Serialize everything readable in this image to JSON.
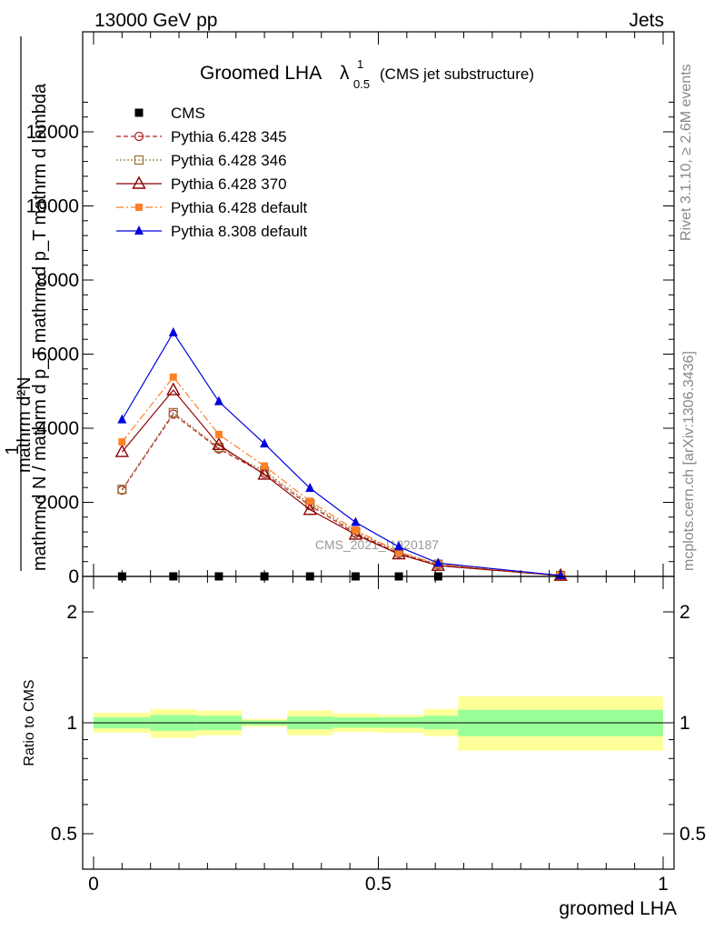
{
  "header": {
    "left": "13000 GeV pp",
    "right": "Jets"
  },
  "title": {
    "main": "Groomed LHA",
    "lambda": "λ",
    "sup": "1",
    "sub": "0.5",
    "note": "(CMS jet substructure)"
  },
  "side_labels": {
    "rivet": "Rivet 3.1.10, ≥ 2.6M events",
    "mcplots": "mcplots.cern.ch [arXiv:1306.3436]"
  },
  "watermark": "CMS_2021_I1920187",
  "ylabel_top": {
    "one": "1",
    "num": "mathrm d²N",
    "den": "mathrm d N / mathrm d p_T mathrm d p_T mathrm d lambda"
  },
  "ylabel_ratio": "Ratio to CMS",
  "xlabel": "groomed LHA",
  "colors": {
    "cms": "#000000",
    "p345": "#b22222",
    "p346": "#9c7a3c",
    "p370": "#8b0000",
    "p6def": "#ff7f27",
    "p8def": "#0000dd",
    "band_inner": "#99ff99",
    "band_outer": "#ffff99"
  },
  "chart_data": [
    {
      "type": "line",
      "xlim": [
        0,
        1
      ],
      "ylim": [
        0,
        14000
      ],
      "yticks": [
        0,
        2000,
        4000,
        6000,
        8000,
        10000,
        12000
      ],
      "ytick_labels": [
        "0",
        "2000",
        "4000",
        "6000",
        "8000",
        "10000",
        "12000"
      ],
      "bin_edges": [
        0,
        0.1,
        0.18,
        0.26,
        0.34,
        0.42,
        0.5,
        0.58,
        0.64,
        1.0
      ],
      "x": [
        0.05,
        0.14,
        0.22,
        0.3,
        0.38,
        0.46,
        0.536,
        0.605,
        0.82
      ],
      "legend_position": "top-left",
      "series": [
        {
          "name": "CMS",
          "key": "cms",
          "marker": "square",
          "dash": "none",
          "values": [
            0.5,
            1.3,
            1.0,
            0.8,
            0.5,
            0.3,
            0.2,
            0.1,
            0.02
          ]
        },
        {
          "name": "Pythia 6.428 345",
          "key": "p345",
          "marker": "circle-open",
          "dash": "5,3",
          "values": [
            2330,
            4380,
            3440,
            2780,
            1910,
            1160,
            620,
            310,
            20
          ]
        },
        {
          "name": "Pythia 6.428 346",
          "key": "p346",
          "marker": "square-open",
          "dash": "2,2",
          "values": [
            2350,
            4420,
            3480,
            2840,
            1960,
            1200,
            650,
            330,
            25
          ]
        },
        {
          "name": "Pythia 6.428 370",
          "key": "p370",
          "marker": "triangle-open",
          "dash": "none",
          "values": [
            3360,
            5030,
            3550,
            2750,
            1800,
            1130,
            600,
            290,
            20
          ]
        },
        {
          "name": "Pythia 6.428 default",
          "key": "p6def",
          "marker": "square-filled",
          "dash": "8,3,2,3",
          "values": [
            3630,
            5380,
            3830,
            2980,
            2030,
            1250,
            660,
            330,
            25
          ]
        },
        {
          "name": "Pythia 8.308 default",
          "key": "p8def",
          "marker": "triangle-filled",
          "dash": "none",
          "values": [
            4230,
            6580,
            4720,
            3580,
            2380,
            1460,
            800,
            360,
            25
          ]
        }
      ]
    },
    {
      "type": "area",
      "xlim": [
        0,
        1
      ],
      "ylim": [
        0.4,
        2.3
      ],
      "yscale": "log",
      "yticks": [
        0.5,
        1,
        2
      ],
      "ytick_labels": [
        "0.5",
        "1",
        "2"
      ],
      "xticks": [
        0,
        0.5,
        1
      ],
      "xtick_labels": [
        "0",
        "0.5",
        "1"
      ],
      "bands": [
        {
          "x0": 0,
          "x1": 0.1,
          "inner": [
            0.965,
            1.035
          ],
          "outer": [
            0.94,
            1.065
          ]
        },
        {
          "x0": 0.1,
          "x1": 0.18,
          "inner": [
            0.95,
            1.05
          ],
          "outer": [
            0.91,
            1.09
          ]
        },
        {
          "x0": 0.18,
          "x1": 0.26,
          "inner": [
            0.955,
            1.045
          ],
          "outer": [
            0.925,
            1.08
          ]
        },
        {
          "x0": 0.26,
          "x1": 0.34,
          "inner": [
            0.985,
            1.015
          ],
          "outer": [
            0.975,
            1.025
          ]
        },
        {
          "x0": 0.34,
          "x1": 0.42,
          "inner": [
            0.96,
            1.04
          ],
          "outer": [
            0.925,
            1.08
          ]
        },
        {
          "x0": 0.42,
          "x1": 0.5,
          "inner": [
            0.97,
            1.035
          ],
          "outer": [
            0.945,
            1.06
          ]
        },
        {
          "x0": 0.5,
          "x1": 0.58,
          "inner": [
            0.97,
            1.035
          ],
          "outer": [
            0.94,
            1.05
          ]
        },
        {
          "x0": 0.58,
          "x1": 0.64,
          "inner": [
            0.96,
            1.045
          ],
          "outer": [
            0.92,
            1.09
          ]
        },
        {
          "x0": 0.64,
          "x1": 1.0,
          "inner": [
            0.92,
            1.085
          ],
          "outer": [
            0.84,
            1.18
          ]
        }
      ]
    }
  ]
}
